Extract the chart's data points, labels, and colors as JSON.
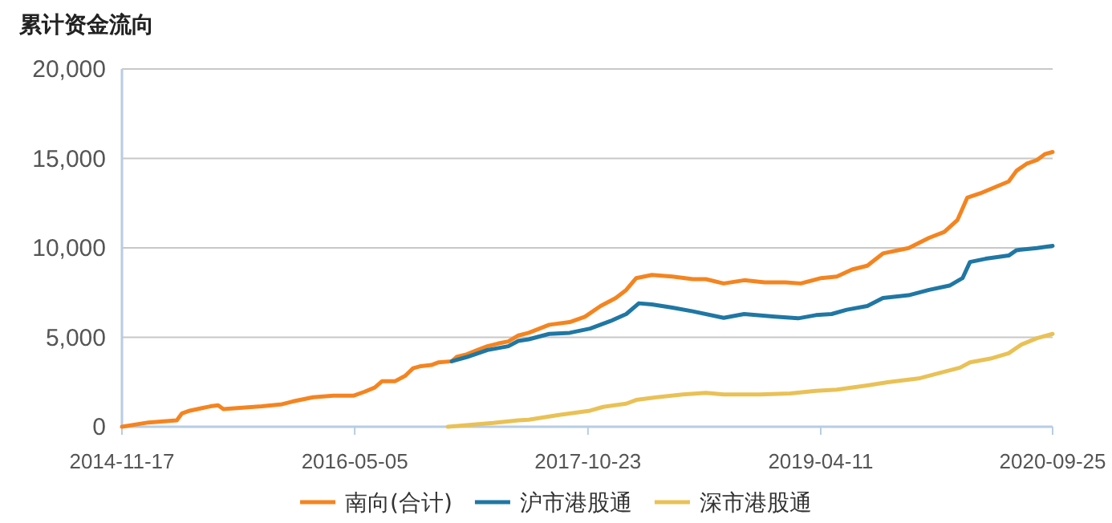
{
  "chart_data": {
    "type": "line",
    "title": "累计资金流向",
    "xlim": [
      "2014-11-17",
      "2020-09-25"
    ],
    "xticks": [
      "2014-11-17",
      "2016-05-05",
      "2017-10-23",
      "2019-04-11",
      "2020-09-25"
    ],
    "ylim": [
      0,
      20000
    ],
    "yticks": [
      {
        "value": 0,
        "label": "0"
      },
      {
        "value": 5000,
        "label": "5,000"
      },
      {
        "value": 10000,
        "label": "10,000"
      },
      {
        "value": 15000,
        "label": "15,000"
      },
      {
        "value": 20000,
        "label": "20,000"
      }
    ],
    "grid": "y",
    "legend": "bottom",
    "marker": "none",
    "line_style": "solid",
    "series": [
      {
        "name": "南向(合计)",
        "color": "#f5841f",
        "x": [
          "2014-11-17",
          "2015-01-17",
          "2015-03-23",
          "2015-04-04",
          "2015-04-22",
          "2015-06-08",
          "2015-06-26",
          "2015-07-08",
          "2015-10-04",
          "2015-11-20",
          "2015-12-14",
          "2016-01-30",
          "2016-03-17",
          "2016-05-03",
          "2016-05-27",
          "2016-06-20",
          "2016-07-07",
          "2016-08-06",
          "2016-08-29",
          "2016-09-16",
          "2016-10-04",
          "2016-10-28",
          "2016-11-14",
          "2016-12-14",
          "2016-12-25",
          "2017-01-18",
          "2017-02-11",
          "2017-03-06",
          "2017-03-30",
          "2017-04-23",
          "2017-05-16",
          "2017-06-09",
          "2017-07-26",
          "2017-09-11",
          "2017-10-16",
          "2017-11-21",
          "2017-12-26",
          "2018-01-19",
          "2018-02-11",
          "2018-03-19",
          "2018-05-05",
          "2018-06-21",
          "2018-07-21",
          "2018-08-31",
          "2018-10-17",
          "2018-12-03",
          "2019-01-20",
          "2019-02-24",
          "2019-04-12",
          "2019-05-18",
          "2019-06-22",
          "2019-07-27",
          "2019-09-01",
          "2019-10-30",
          "2019-12-16",
          "2020-01-20",
          "2020-02-19",
          "2020-03-13",
          "2020-04-12",
          "2020-05-17",
          "2020-06-16",
          "2020-07-04",
          "2020-07-27",
          "2020-08-20",
          "2020-09-07",
          "2020-09-25"
        ],
        "values": [
          0,
          240,
          360,
          750,
          900,
          1140,
          1200,
          990,
          1140,
          1260,
          1410,
          1650,
          1740,
          1740,
          1950,
          2190,
          2550,
          2550,
          2850,
          3270,
          3390,
          3450,
          3600,
          3660,
          3900,
          4050,
          4290,
          4500,
          4650,
          4770,
          5100,
          5250,
          5700,
          5850,
          6150,
          6750,
          7200,
          7650,
          8310,
          8490,
          8400,
          8250,
          8250,
          8010,
          8190,
          8070,
          8070,
          8010,
          8310,
          8400,
          8790,
          9000,
          9690,
          9990,
          10560,
          10890,
          11550,
          12810,
          13050,
          13410,
          13710,
          14310,
          14700,
          14910,
          15240,
          15360
        ]
      },
      {
        "name": "沪市港股通",
        "color": "#1f77a4",
        "x": [
          "2016-12-14",
          "2017-01-18",
          "2017-03-06",
          "2017-04-23",
          "2017-05-16",
          "2017-06-09",
          "2017-07-26",
          "2017-09-11",
          "2017-10-28",
          "2017-12-14",
          "2018-01-19",
          "2018-02-17",
          "2018-03-19",
          "2018-05-05",
          "2018-06-21",
          "2018-08-31",
          "2018-10-17",
          "2018-12-27",
          "2019-02-18",
          "2019-03-31",
          "2019-05-06",
          "2019-06-10",
          "2019-07-27",
          "2019-09-01",
          "2019-10-30",
          "2019-12-16",
          "2020-02-01",
          "2020-03-02",
          "2020-03-19",
          "2020-04-24",
          "2020-06-16",
          "2020-07-04",
          "2020-08-20",
          "2020-09-25"
        ],
        "values": [
          3660,
          3900,
          4290,
          4500,
          4800,
          4890,
          5190,
          5250,
          5490,
          5910,
          6300,
          6900,
          6840,
          6660,
          6450,
          6090,
          6300,
          6150,
          6060,
          6240,
          6300,
          6540,
          6750,
          7200,
          7350,
          7650,
          7890,
          8310,
          9210,
          9390,
          9570,
          9870,
          9990,
          10110
        ]
      },
      {
        "name": "深市港股通",
        "color": "#e9c155",
        "x": [
          "2016-12-05",
          "2017-03-19",
          "2017-05-16",
          "2017-06-09",
          "2017-08-18",
          "2017-10-28",
          "2017-11-27",
          "2018-01-19",
          "2018-02-11",
          "2018-03-30",
          "2018-05-29",
          "2018-07-21",
          "2018-08-31",
          "2018-11-22",
          "2019-01-31",
          "2019-03-31",
          "2019-05-18",
          "2019-07-27",
          "2019-09-12",
          "2019-11-22",
          "2020-01-08",
          "2020-02-25",
          "2020-03-19",
          "2020-05-05",
          "2020-06-16",
          "2020-07-15",
          "2020-08-20",
          "2020-09-25"
        ],
        "values": [
          0,
          210,
          360,
          390,
          660,
          900,
          1110,
          1290,
          1500,
          1650,
          1800,
          1890,
          1800,
          1800,
          1860,
          2010,
          2070,
          2310,
          2490,
          2700,
          3000,
          3300,
          3600,
          3810,
          4110,
          4590,
          4950,
          5190
        ]
      }
    ]
  }
}
